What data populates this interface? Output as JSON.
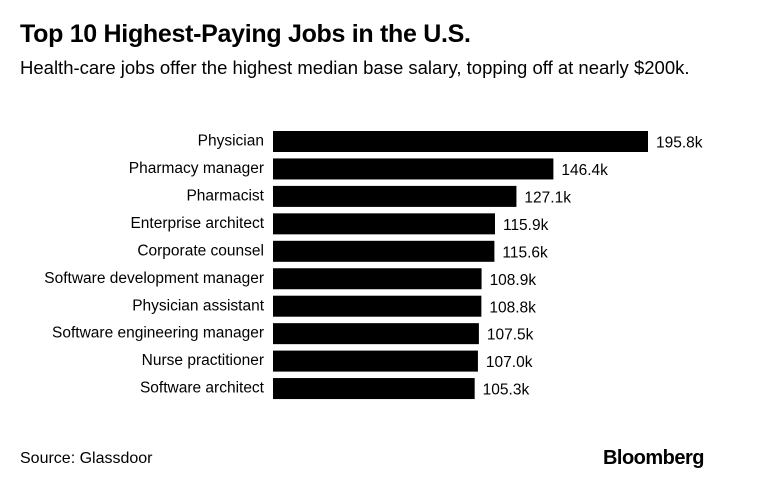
{
  "chart_data": {
    "type": "barh",
    "title": "Top 10 Highest-Paying Jobs in the U.S.",
    "subtitle": "Health-care jobs offer the highest median base salary, topping off at nearly $200k.",
    "categories": [
      "Physician",
      "Pharmacy manager",
      "Pharmacist",
      "Enterprise architect",
      "Corporate counsel",
      "Software development manager",
      "Physician assistant",
      "Software engineering manager",
      "Nurse practitioner",
      "Software architect"
    ],
    "values": [
      195.8,
      146.4,
      127.1,
      115.9,
      115.6,
      108.9,
      108.8,
      107.5,
      107.0,
      105.3
    ],
    "value_labels": [
      "195.8k",
      "146.4k",
      "127.1k",
      "115.9k",
      "115.6k",
      "108.9k",
      "108.8k",
      "107.5k",
      "107.0k",
      "105.3k"
    ],
    "color": "#000000",
    "source": "Source: Glassdoor",
    "brand": "Bloomberg"
  }
}
